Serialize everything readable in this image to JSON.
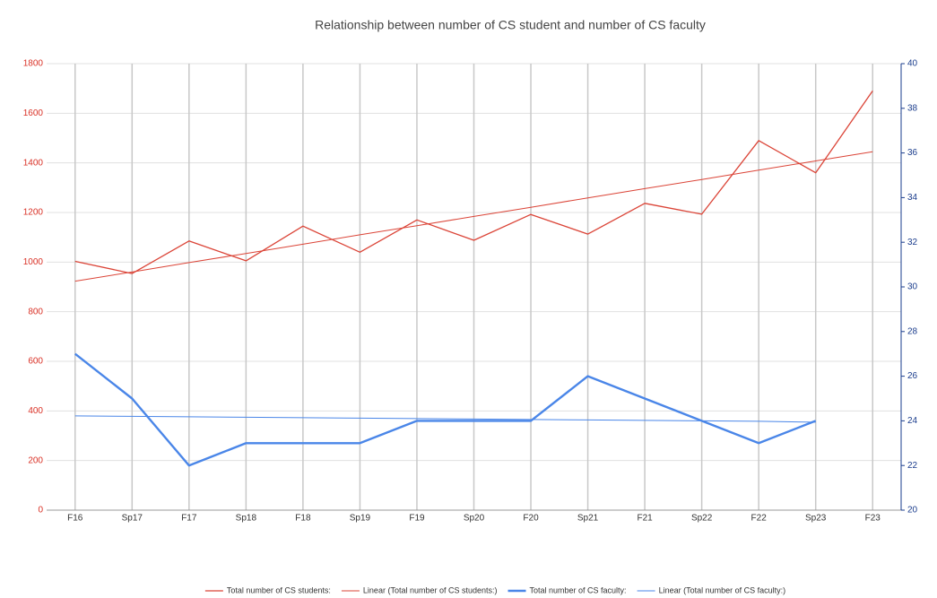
{
  "chart_data": {
    "type": "line",
    "title": "Relationship between number of CS student and number of CS faculty",
    "categories": [
      "F16",
      "Sp17",
      "F17",
      "Sp18",
      "F18",
      "Sp19",
      "F19",
      "Sp20",
      "F20",
      "Sp21",
      "F21",
      "Sp22",
      "F22",
      "Sp23",
      "F23"
    ],
    "series": [
      {
        "name": "Total number of CS students:",
        "color": "#db4437",
        "values": [
          1003,
          954,
          1085,
          1005,
          1145,
          1040,
          1170,
          1088,
          1192,
          1113,
          1237,
          1193,
          1490,
          1360,
          1690
        ]
      },
      {
        "name": "Linear (Total number of CS students:)",
        "color": "#db4437",
        "values": [
          923,
          960,
          998,
          1035,
          1072,
          1110,
          1147,
          1184,
          1221,
          1259,
          1296,
          1333,
          1371,
          1408,
          1445
        ]
      },
      {
        "name": "Total number of CS faculty:",
        "color": "#4a86e8",
        "axis": "y2",
        "values": [
          27,
          25,
          22,
          23,
          23,
          23,
          24,
          24,
          24,
          26,
          25,
          24,
          23,
          24,
          null
        ]
      },
      {
        "name": "Linear (Total number of CS faculty:)",
        "color": "#4a86e8",
        "axis": "y2",
        "values": [
          24.22,
          24.2,
          24.18,
          24.16,
          24.14,
          24.12,
          24.1,
          24.08,
          24.06,
          24.04,
          24.02,
          24.0,
          23.98,
          23.94,
          null
        ]
      }
    ],
    "ylim": [
      0,
      1800
    ],
    "yticks": [
      0,
      200,
      400,
      600,
      800,
      1000,
      1200,
      1400,
      1600,
      1800
    ],
    "y2lim": [
      20,
      40
    ],
    "y2ticks": [
      20,
      22,
      24,
      26,
      28,
      30,
      32,
      34,
      36,
      38,
      40
    ],
    "grid": true
  }
}
